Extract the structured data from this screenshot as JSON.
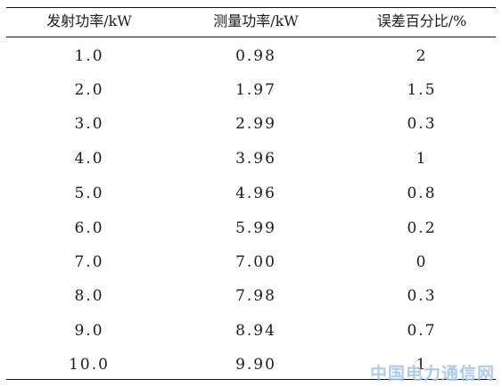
{
  "table": {
    "headers": [
      "发射功率/kW",
      "测量功率/kW",
      "误差百分比/%"
    ],
    "rows": [
      [
        "1.0",
        "0.98",
        "2"
      ],
      [
        "2.0",
        "1.97",
        "1.5"
      ],
      [
        "3.0",
        "2.99",
        "0.3"
      ],
      [
        "4.0",
        "3.96",
        "1"
      ],
      [
        "5.0",
        "4.96",
        "0.8"
      ],
      [
        "6.0",
        "5.99",
        "0.2"
      ],
      [
        "7.0",
        "7.00",
        "0"
      ],
      [
        "8.0",
        "7.98",
        "0.3"
      ],
      [
        "9.0",
        "8.94",
        "0.7"
      ],
      [
        "10.0",
        "9.90",
        "1"
      ]
    ]
  },
  "watermark": "中国电力通信网"
}
